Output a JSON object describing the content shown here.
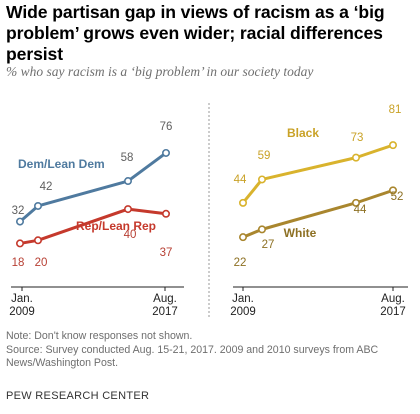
{
  "header": {
    "title": "Wide partisan gap in views of racism as a ‘big problem’ grows even wider; racial differences persist",
    "subtitle": "% who say racism is a ‘big problem’ in our society today"
  },
  "chart_data": [
    {
      "type": "line",
      "panel": "left",
      "x_tick_labels": [
        "Jan.\n2009",
        "Aug.\n2017"
      ],
      "grid": false,
      "series": [
        {
          "name": "Dem/Lean Dem",
          "color": "#4f7a9f",
          "label_color": "#4f7a9f",
          "points": [
            [
              "Jan. 2009",
              32
            ],
            [
              "2010",
              42
            ],
            [
              "2015",
              58
            ],
            [
              "Aug. 2017",
              76
            ]
          ]
        },
        {
          "name": "Rep/Lean Rep",
          "color": "#c5392c",
          "label_color": "#c5392c",
          "points": [
            [
              "Jan. 2009",
              18
            ],
            [
              "2010",
              20
            ],
            [
              "2015",
              40
            ],
            [
              "Aug. 2017",
              37
            ]
          ]
        }
      ]
    },
    {
      "type": "line",
      "panel": "right",
      "x_tick_labels": [
        "Jan.\n2009",
        "Aug.\n2017"
      ],
      "grid": false,
      "series": [
        {
          "name": "Black",
          "color": "#d9b32d",
          "label_color": "#c9a227",
          "points": [
            [
              "Jan. 2009",
              44
            ],
            [
              "2010",
              59
            ],
            [
              "2015",
              73
            ],
            [
              "Aug. 2017",
              81
            ]
          ]
        },
        {
          "name": "White",
          "color": "#a9862e",
          "label_color": "#8d7023",
          "points": [
            [
              "Jan. 2009",
              22
            ],
            [
              "2010",
              27
            ],
            [
              "2015",
              44
            ],
            [
              "Aug. 2017",
              52
            ]
          ]
        }
      ]
    }
  ],
  "notes": {
    "note": "Note: Don't know responses not shown.",
    "source_1": "Source: Survey conducted Aug. 15-21, 2017. 2009 and 2010 surveys from ABC",
    "source_2": "News/Washington Post."
  },
  "brand": "PEW RESEARCH CENTER",
  "colors": {
    "divider": "#9a9a9a",
    "axis": "#222222",
    "value_label": "#6e6e6e"
  }
}
